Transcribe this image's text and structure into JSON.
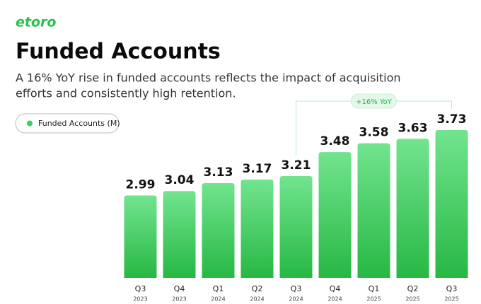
{
  "chart_data": {
    "type": "bar",
    "brand": "etoro",
    "title": "Funded Accounts",
    "subtitle": [
      "A 16% YoY rise in funded accounts reflects the impact of acquisition",
      "efforts and consistently high retention."
    ],
    "categories": [
      "Q3",
      "Q4",
      "Q1",
      "Q2",
      "Q3",
      "Q4",
      "Q1",
      "Q2",
      "Q3"
    ],
    "category_years": [
      "2023",
      "2023",
      "2024",
      "2024",
      "2024",
      "2024",
      "2025",
      "2025",
      "2025"
    ],
    "series": [
      {
        "name": "Funded Accounts (M)",
        "color": "#3ccf5b",
        "values": [
          2.99,
          3.04,
          3.13,
          3.17,
          3.21,
          3.48,
          3.58,
          3.63,
          3.73
        ]
      }
    ],
    "annotation": {
      "text": "+16% YoY",
      "from": 4,
      "to": 8
    },
    "ylim": [
      2.06,
      4.0
    ]
  }
}
